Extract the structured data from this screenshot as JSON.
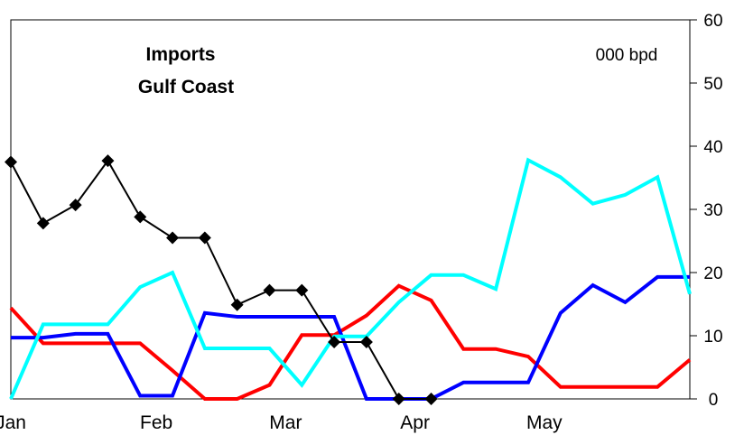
{
  "chart_data": {
    "type": "line",
    "title": "Imports",
    "subtitle": "Gulf Coast",
    "unit_label": "000 bpd",
    "y_axis_side": "right",
    "ylim": [
      0,
      60
    ],
    "yticks": [
      0,
      10,
      20,
      30,
      40,
      50,
      60
    ],
    "x_range": [
      0,
      21
    ],
    "xtick_labels": [
      {
        "label": "Jan",
        "x": 0
      },
      {
        "label": "Feb",
        "x": 4.5
      },
      {
        "label": "Mar",
        "x": 8.5
      },
      {
        "label": "Apr",
        "x": 12.5
      },
      {
        "label": "May",
        "x": 16.5
      }
    ],
    "grid": false,
    "legend": "none",
    "series": [
      {
        "color": "#000000",
        "marker": "diamond",
        "width": 2,
        "x": [
          0,
          1,
          2,
          3,
          4,
          5,
          6,
          7,
          8,
          9,
          10,
          11,
          12,
          13
        ],
        "values": [
          37.5,
          27.8,
          30.7,
          37.7,
          28.8,
          25.5,
          25.5,
          14.9,
          17.2,
          17.2,
          9.0,
          9.0,
          0,
          0
        ]
      },
      {
        "color": "#ff0000",
        "marker": "none",
        "width": 4,
        "x": [
          0,
          1,
          2,
          3,
          4,
          5,
          6,
          7,
          8,
          9,
          10,
          11,
          12,
          13,
          14,
          15,
          16,
          17,
          18,
          19,
          20,
          21
        ],
        "values": [
          14.4,
          8.8,
          8.8,
          8.8,
          8.8,
          4.5,
          0,
          0,
          2.2,
          10.1,
          10.1,
          13.2,
          17.9,
          15.6,
          7.9,
          7.9,
          6.7,
          1.9,
          1.9,
          1.9,
          1.9,
          6.2
        ]
      },
      {
        "color": "#0000ff",
        "marker": "none",
        "width": 4,
        "x": [
          0,
          1,
          2,
          3,
          4,
          5,
          6,
          7,
          8,
          9,
          10,
          11,
          12,
          13,
          14,
          15,
          16,
          17,
          18,
          19,
          20,
          21
        ],
        "values": [
          9.7,
          9.7,
          10.3,
          10.3,
          0.5,
          0.5,
          13.6,
          13.0,
          13.0,
          13.0,
          13.0,
          0,
          0,
          0,
          2.6,
          2.6,
          2.6,
          13.6,
          18.0,
          15.3,
          19.3,
          19.3
        ]
      },
      {
        "color": "#00ffff",
        "marker": "none",
        "width": 4,
        "x": [
          0,
          1,
          2,
          3,
          4,
          5,
          6,
          7,
          8,
          9,
          10,
          11,
          12,
          13,
          14,
          15,
          16,
          17,
          18,
          19,
          20,
          21
        ],
        "values": [
          0,
          11.8,
          11.8,
          11.8,
          17.7,
          20.0,
          8.0,
          8.0,
          8.0,
          2.2,
          9.9,
          9.9,
          15.3,
          19.6,
          19.6,
          17.4,
          37.8,
          35.1,
          30.9,
          32.3,
          35.1,
          16.6
        ]
      }
    ]
  }
}
